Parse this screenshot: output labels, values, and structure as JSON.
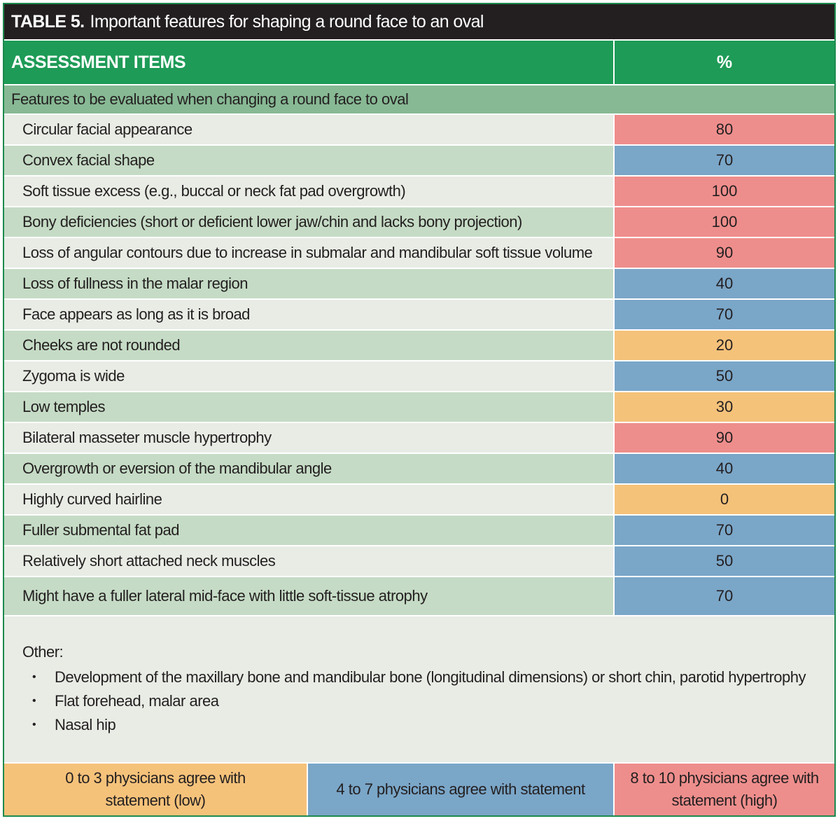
{
  "title": {
    "prefix": "TABLE 5.",
    "text": "Important features for shaping a round face to an oval"
  },
  "header": {
    "col1": "ASSESSMENT ITEMS",
    "col2": "%"
  },
  "section_label": "Features to be evaluated when changing a round face to oval",
  "colors": {
    "low": "#f5c27a",
    "mid": "#7aa6c8",
    "high": "#ee8e8c",
    "header_green": "#1e9b57",
    "section_green": "#87b994",
    "title_black": "#231f20"
  },
  "rows": [
    {
      "label": "Circular facial appearance",
      "value": "80",
      "level": "high"
    },
    {
      "label": "Convex facial shape",
      "value": "70",
      "level": "mid"
    },
    {
      "label": "Soft tissue excess (e.g., buccal or neck fat pad overgrowth)",
      "value": "100",
      "level": "high"
    },
    {
      "label": "Bony deficiencies (short or deficient lower jaw/chin and lacks bony projection)",
      "value": "100",
      "level": "high"
    },
    {
      "label": "Loss of angular contours due to increase in submalar and mandibular soft tissue volume",
      "value": "90",
      "level": "high"
    },
    {
      "label": "Loss of fullness in the malar region",
      "value": "40",
      "level": "mid"
    },
    {
      "label": "Face appears as long as it is broad",
      "value": "70",
      "level": "mid"
    },
    {
      "label": "Cheeks are not rounded",
      "value": "20",
      "level": "low"
    },
    {
      "label": "Zygoma is wide",
      "value": "50",
      "level": "mid"
    },
    {
      "label": "Low temples",
      "value": "30",
      "level": "low"
    },
    {
      "label": "Bilateral masseter muscle hypertrophy",
      "value": "90",
      "level": "high"
    },
    {
      "label": "Overgrowth or eversion of the mandibular angle",
      "value": "40",
      "level": "mid"
    },
    {
      "label": "Highly curved hairline",
      "value": "0",
      "level": "low"
    },
    {
      "label": "Fuller submental fat pad",
      "value": "70",
      "level": "mid"
    },
    {
      "label": "Relatively short attached neck muscles",
      "value": "50",
      "level": "mid"
    },
    {
      "label": "Might have a fuller lateral mid-face with little soft-tissue atrophy",
      "value": "70",
      "level": "mid"
    }
  ],
  "other": {
    "title": "Other:",
    "bullet": "•",
    "items": [
      "Development of the maxillary bone and mandibular bone (longitudinal dimensions) or short chin, parotid hypertrophy",
      "Flat forehead, malar area",
      "Nasal hip"
    ]
  },
  "legend": {
    "low": "0 to 3 physicians agree with statement (low)",
    "mid": "4 to 7 physicians agree with statement",
    "high": "8 to 10 physicians agree with statement (high)"
  }
}
